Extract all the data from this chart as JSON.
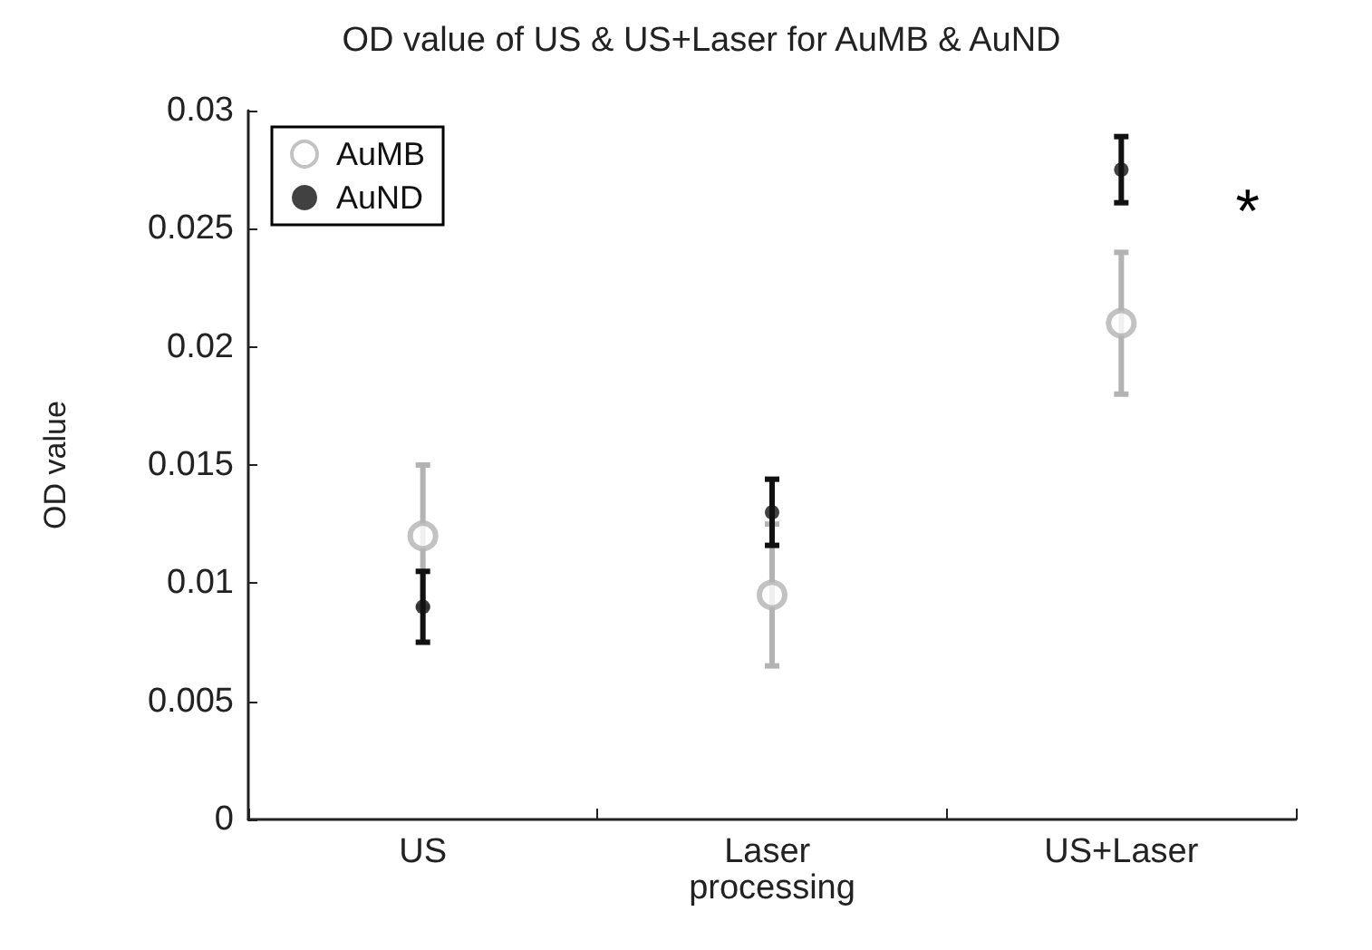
{
  "chart_data": {
    "type": "scatter",
    "title": "OD value of US & US+Laser for AuMB & AuND",
    "ylabel": "OD value",
    "categories": [
      "US",
      "Laser processing",
      "US+Laser"
    ],
    "series": [
      {
        "name": "AuMB",
        "color": "#b3b3b3",
        "values": [
          0.012,
          0.0095,
          0.021
        ],
        "errors": [
          0.003,
          0.003,
          0.003
        ]
      },
      {
        "name": "AuND",
        "color": "#111111",
        "values": [
          0.009,
          0.013,
          0.0275
        ],
        "errors": [
          0.0015,
          0.0014,
          0.0014
        ]
      }
    ],
    "ylim": [
      0,
      0.03
    ],
    "yticks": [
      0,
      0.005,
      0.01,
      0.015,
      0.02,
      0.025,
      0.03
    ],
    "annotations": [
      "*"
    ],
    "grid": false,
    "legend": "top left",
    "marker": "circle"
  }
}
